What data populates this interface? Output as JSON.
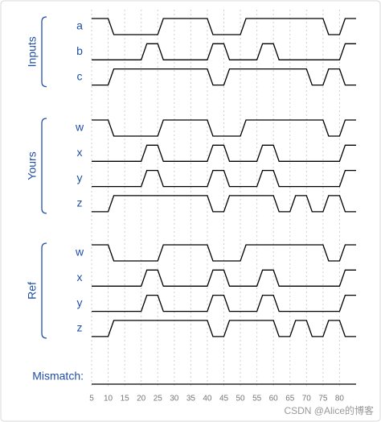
{
  "groups": [
    {
      "label": "Inputs",
      "signals": [
        {
          "name": "a",
          "initial": 1,
          "edges": [
            10,
            25,
            40,
            50,
            75,
            80
          ]
        },
        {
          "name": "b",
          "initial": 0,
          "edges": [
            20,
            25,
            40,
            45,
            55,
            60,
            80
          ]
        },
        {
          "name": "c",
          "initial": 0,
          "edges": [
            10,
            40,
            45,
            70,
            75,
            80
          ]
        }
      ]
    },
    {
      "label": "Yours",
      "signals": [
        {
          "name": "w",
          "initial": 1,
          "edges": [
            10,
            25,
            40,
            50,
            75,
            80
          ]
        },
        {
          "name": "x",
          "initial": 0,
          "edges": [
            20,
            25,
            40,
            45,
            55,
            60,
            80
          ]
        },
        {
          "name": "y",
          "initial": 0,
          "edges": [
            20,
            25,
            40,
            45,
            55,
            60,
            80
          ]
        },
        {
          "name": "z",
          "initial": 0,
          "edges": [
            10,
            40,
            45,
            60,
            65,
            70,
            75,
            80
          ]
        }
      ]
    },
    {
      "label": "Ref",
      "signals": [
        {
          "name": "w",
          "initial": 1,
          "edges": [
            10,
            25,
            40,
            50,
            75,
            80
          ]
        },
        {
          "name": "x",
          "initial": 0,
          "edges": [
            20,
            25,
            40,
            45,
            55,
            60,
            80
          ]
        },
        {
          "name": "y",
          "initial": 0,
          "edges": [
            20,
            25,
            40,
            45,
            55,
            60,
            80
          ]
        },
        {
          "name": "z",
          "initial": 0,
          "edges": [
            10,
            40,
            45,
            60,
            65,
            70,
            75,
            80
          ]
        }
      ]
    }
  ],
  "mismatch": {
    "label": "Mismatch:",
    "initial": 0,
    "edges": []
  },
  "axis": {
    "xlim": [
      5,
      85
    ],
    "ticks": [
      5,
      10,
      15,
      20,
      25,
      30,
      35,
      40,
      45,
      50,
      55,
      60,
      65,
      70,
      75,
      80
    ]
  },
  "watermark": "CSDN @Alice的博客"
}
